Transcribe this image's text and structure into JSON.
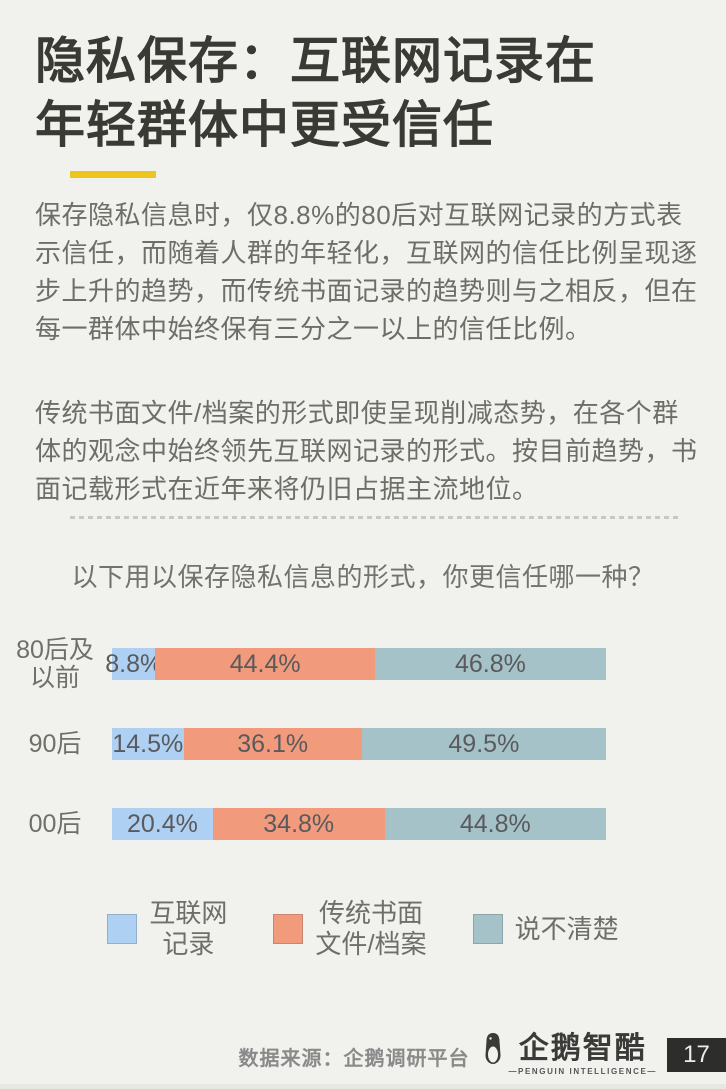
{
  "page": {
    "bg_color": "#f1f1ed",
    "accent_yellow": "#eec51d",
    "title_color": "#3a3a35"
  },
  "title": {
    "line1": "隐私保存：互联网记录在",
    "line2": "年轻群体中更受信任"
  },
  "intro": {
    "p1": "保存隐私信息时，仅8.8%的80后对互联网记录的方式表示信任，而随着人群的年轻化，互联网的信任比例呈现逐步上升的趋势，而传统书面记录的趋势则与之相反，但在每一群体中始终保有三分之一以上的信任比例。",
    "p2": "传统书面文件/档案的形式即使呈现削减态势，在各个群体的观念中始终领先互联网记录的形式。按目前趋势，书面记载形式在近年来将仍旧占据主流地位。"
  },
  "chart": {
    "question": "以下用以保存隐私信息的形式，你更信任哪一种？"
  },
  "chart_data": {
    "type": "bar",
    "orientation": "horizontal-stacked",
    "title": "以下用以保存隐私信息的形式，你更信任哪一种？",
    "categories": [
      "80后及以前",
      "90后",
      "00后"
    ],
    "categories_display": [
      [
        "80后及",
        "以前"
      ],
      [
        "90后"
      ],
      [
        "00后"
      ]
    ],
    "series": [
      {
        "name": "互联网记录",
        "display": [
          "互联网",
          "记录"
        ],
        "color": "#aed0f2",
        "values": [
          8.8,
          14.5,
          20.4
        ]
      },
      {
        "name": "传统书面文件/档案",
        "display": [
          "传统书面",
          "文件/档案"
        ],
        "color": "#f19a7c",
        "values": [
          44.4,
          36.1,
          34.8
        ]
      },
      {
        "name": "说不清楚",
        "display": [
          "说不清楚"
        ],
        "color": "#a5c2c9",
        "values": [
          46.8,
          49.5,
          44.8
        ]
      }
    ],
    "value_suffix": "%",
    "xlim": [
      0,
      100
    ],
    "grid": false,
    "legend_position": "bottom",
    "value_label_color": "#5a5a5c",
    "category_label_color": "#70706a"
  },
  "footer": {
    "source": "数据来源：企鹅调研平台",
    "logo_text": "企鹅智酷",
    "logo_subtext": "—PENGUIN INTELLIGENCE—",
    "page_number": "17"
  }
}
